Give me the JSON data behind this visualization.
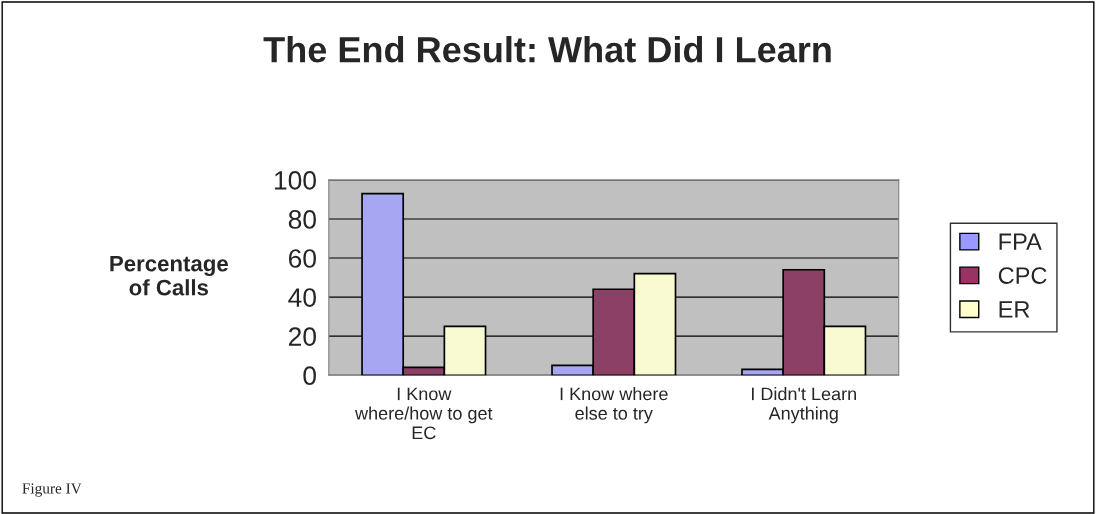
{
  "chart_data": {
    "type": "bar",
    "title": "The End Result: What Did I Learn",
    "ylabel": "Percentage\nof Calls",
    "categories": [
      "I Know\nwhere/how to get\nEC",
      "I Know where\nelse to try",
      "I Didn't Learn\nAnything"
    ],
    "series": [
      {
        "name": "FPA",
        "color": "#9999ff",
        "values": [
          93,
          5,
          3
        ]
      },
      {
        "name": "CPC",
        "color": "#993366",
        "values": [
          4,
          44,
          54
        ]
      },
      {
        "name": "ER",
        "color": "#ffffcc",
        "values": [
          25,
          52,
          25
        ]
      }
    ],
    "ylim": [
      0,
      100
    ],
    "yticks": [
      0,
      20,
      40,
      60,
      80,
      100
    ],
    "grid": "y",
    "legend": "right",
    "annotations": [
      "Figure IV"
    ]
  }
}
